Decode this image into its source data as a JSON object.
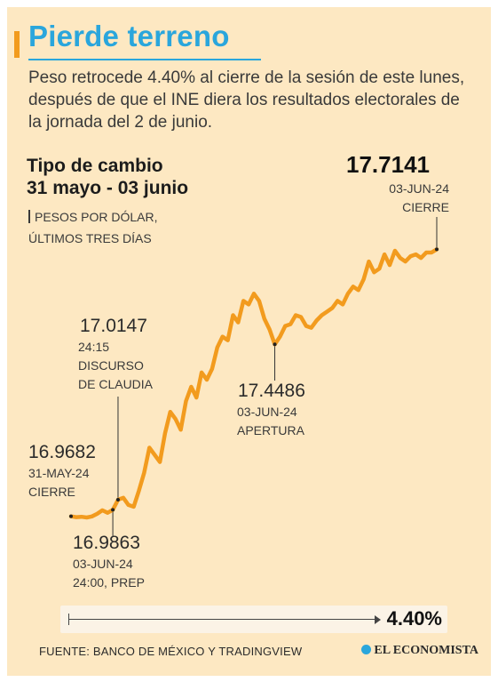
{
  "header": {
    "title": "Pierde terreno",
    "subtitle": "Peso retrocede 4.40% al cierre de la sesión de este lunes, después de que el INE diera los resultados electorales de la jornada del 2 de junio."
  },
  "chart_data": {
    "type": "line",
    "title_line1": "Tipo de cambio",
    "title_line2": "31 mayo - 03 junio",
    "unit_line1": "PESOS POR DÓLAR,",
    "unit_line2": "ÚLTIMOS TRES DÍAS",
    "y_range": [
      16.9,
      17.75
    ],
    "series": [
      {
        "values": [
          16.9682,
          16.966,
          16.967,
          16.965,
          16.968,
          16.975,
          16.985,
          16.978,
          16.9863,
          17.0147,
          17.02,
          17.0,
          16.995,
          17.04,
          17.09,
          17.16,
          17.14,
          17.12,
          17.2,
          17.26,
          17.24,
          17.21,
          17.29,
          17.33,
          17.3,
          17.37,
          17.35,
          17.38,
          17.44,
          17.47,
          17.46,
          17.53,
          17.51,
          17.57,
          17.56,
          17.59,
          17.57,
          17.52,
          17.49,
          17.4486,
          17.47,
          17.5,
          17.505,
          17.53,
          17.525,
          17.5,
          17.495,
          17.515,
          17.53,
          17.54,
          17.55,
          17.57,
          17.56,
          17.59,
          17.61,
          17.6,
          17.63,
          17.68,
          17.65,
          17.66,
          17.7,
          17.67,
          17.71,
          17.69,
          17.68,
          17.695,
          17.7,
          17.69,
          17.705,
          17.705,
          17.7141
        ]
      }
    ],
    "annotations": [
      {
        "value": "17.0147",
        "note": [
          "24:15",
          "DISCURSO",
          "DE CLAUDIA"
        ]
      },
      {
        "value": "16.9682",
        "note": [
          "31-MAY-24",
          "CIERRE"
        ]
      },
      {
        "value": "16.9863",
        "note": [
          "03-JUN-24",
          "24:00, PREP"
        ]
      },
      {
        "value": "17.4486",
        "note": [
          "03-JUN-24",
          "APERTURA"
        ]
      },
      {
        "value": "17.7141",
        "note": [
          "03-JUN-24",
          "CIERRE"
        ]
      }
    ],
    "change_label": "4.40%",
    "line_color": "#f29b1e"
  },
  "footer": {
    "source": "FUENTE: BANCO DE MÉXICO Y TRADINGVIEW",
    "brand": "EL ECONOMISTA"
  },
  "colors": {
    "background": "#fde8c2",
    "accent": "#2aa6dc",
    "line": "#f29b1e"
  }
}
